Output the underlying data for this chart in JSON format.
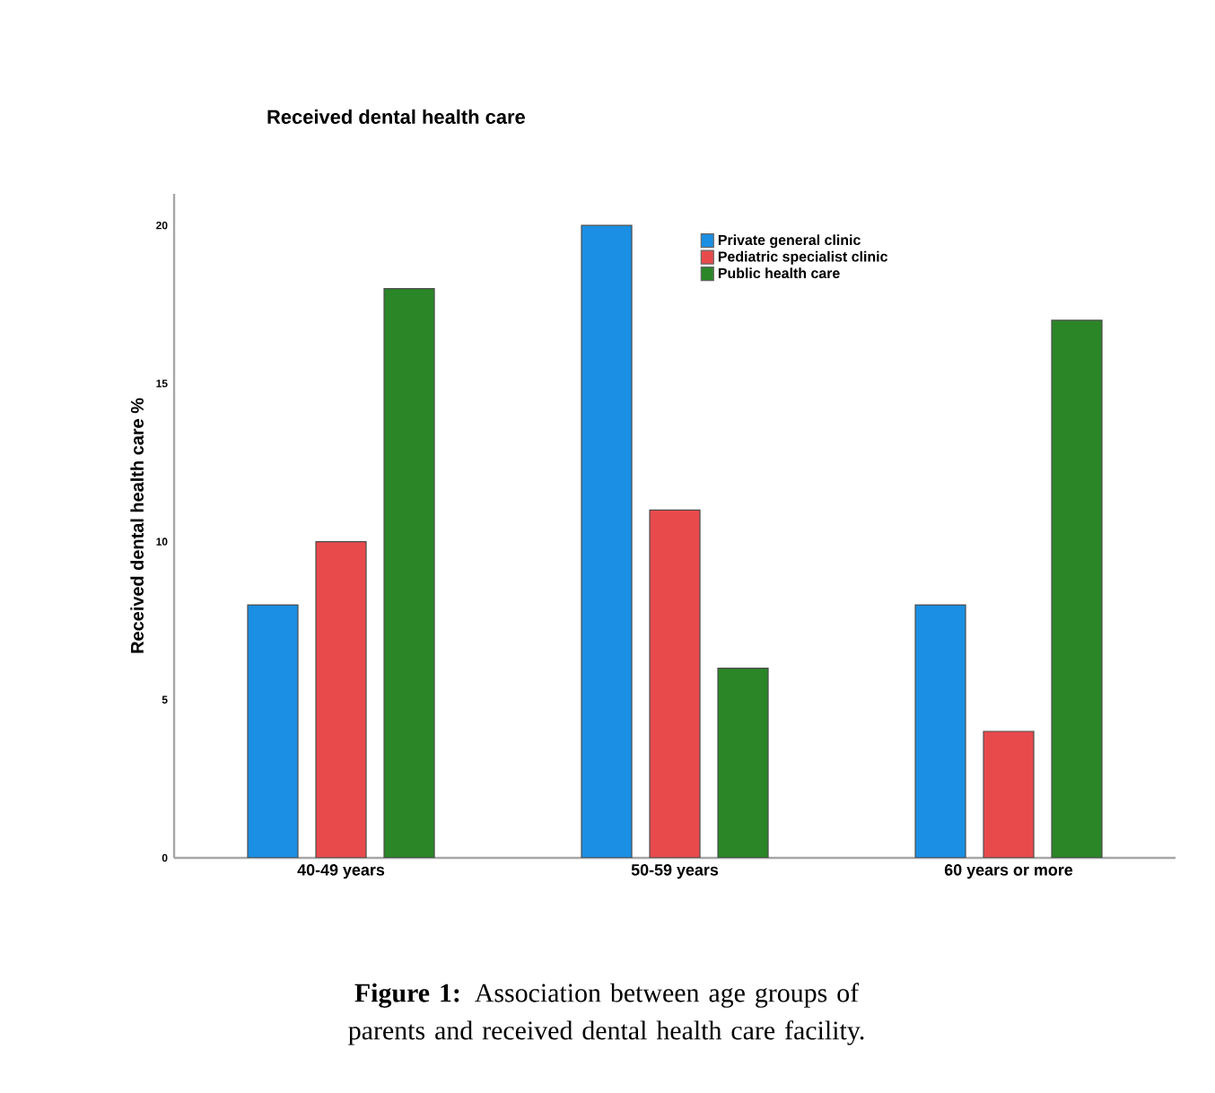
{
  "chart_data": {
    "type": "bar",
    "title": "Received dental health care",
    "ylabel": "Received dental health care %",
    "categories": [
      "40-49 years",
      "50-59 years",
      "60 years or more"
    ],
    "series": [
      {
        "name": "Private general clinic",
        "color": "#1a8fe3",
        "values": [
          8,
          20,
          8
        ]
      },
      {
        "name": "Pediatric specialist clinic",
        "color": "#e84a4c",
        "values": [
          10,
          11,
          4
        ]
      },
      {
        "name": "Public health care",
        "color": "#2a8627",
        "values": [
          18,
          6,
          17
        ]
      }
    ],
    "ylim": [
      0,
      21
    ],
    "yticks": [
      0,
      5,
      10,
      15,
      20
    ],
    "grid": false,
    "legend": "top right",
    "annotations": [
      "**Figure 1:** Association between age groups of parents and received dental health care facility."
    ]
  }
}
